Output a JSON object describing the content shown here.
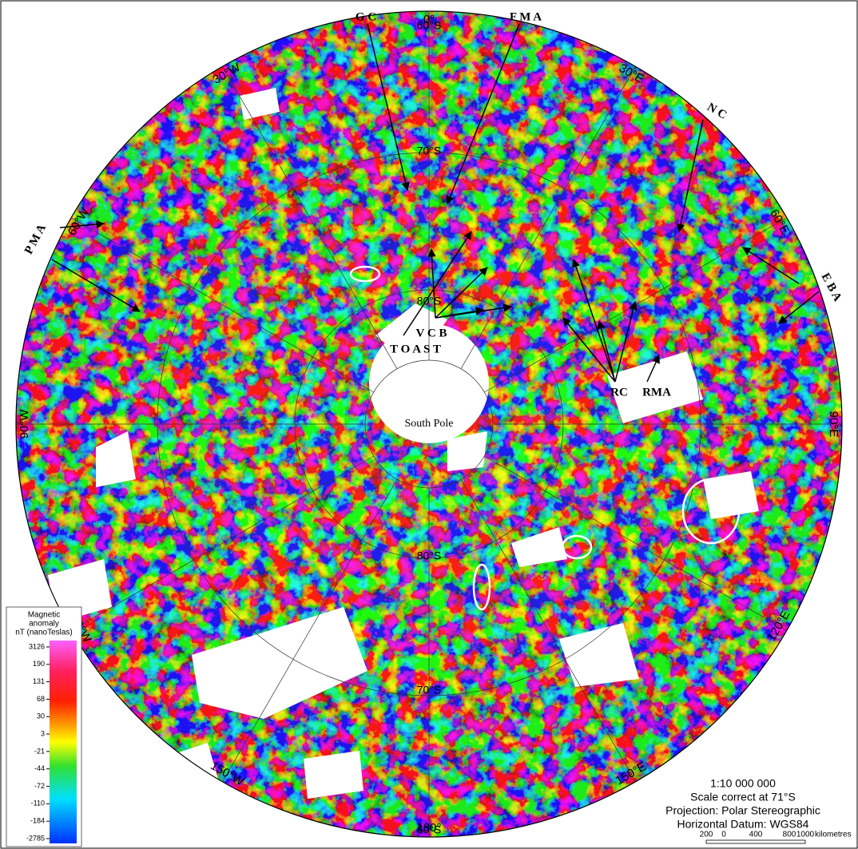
{
  "map": {
    "meridians": [
      "0°",
      "30°E",
      "60°E",
      "90°E",
      "120°E",
      "150°E",
      "180°",
      "150°W",
      "120°W",
      "90°W",
      "60°W",
      "30°W"
    ],
    "parallels": [
      "60°S",
      "70°S",
      "80°S",
      "80°S",
      "70°S",
      "60°S"
    ],
    "pole": "South Pole",
    "annotations": [
      "G C",
      "F M A",
      "N C",
      "E B A",
      "P M A",
      "V C B",
      "T O A S T",
      "RC",
      "RMA"
    ],
    "legend": {
      "title": [
        "Magnetic",
        "anomaly",
        "nT (nanoTeslas)"
      ],
      "ticks": [
        3126,
        190,
        131,
        68,
        30,
        3,
        -21,
        -44,
        -72,
        -110,
        -184,
        -2785
      ]
    },
    "scale_info": {
      "lines": [
        "1:10 000 000",
        "Scale correct at 71°S",
        "Projection: Polar Stereographic",
        "Horizontal Datum: WGS84"
      ],
      "bar_labels": [
        200,
        0,
        400,
        800,
        1000
      ],
      "unit": "kilometres"
    }
  }
}
